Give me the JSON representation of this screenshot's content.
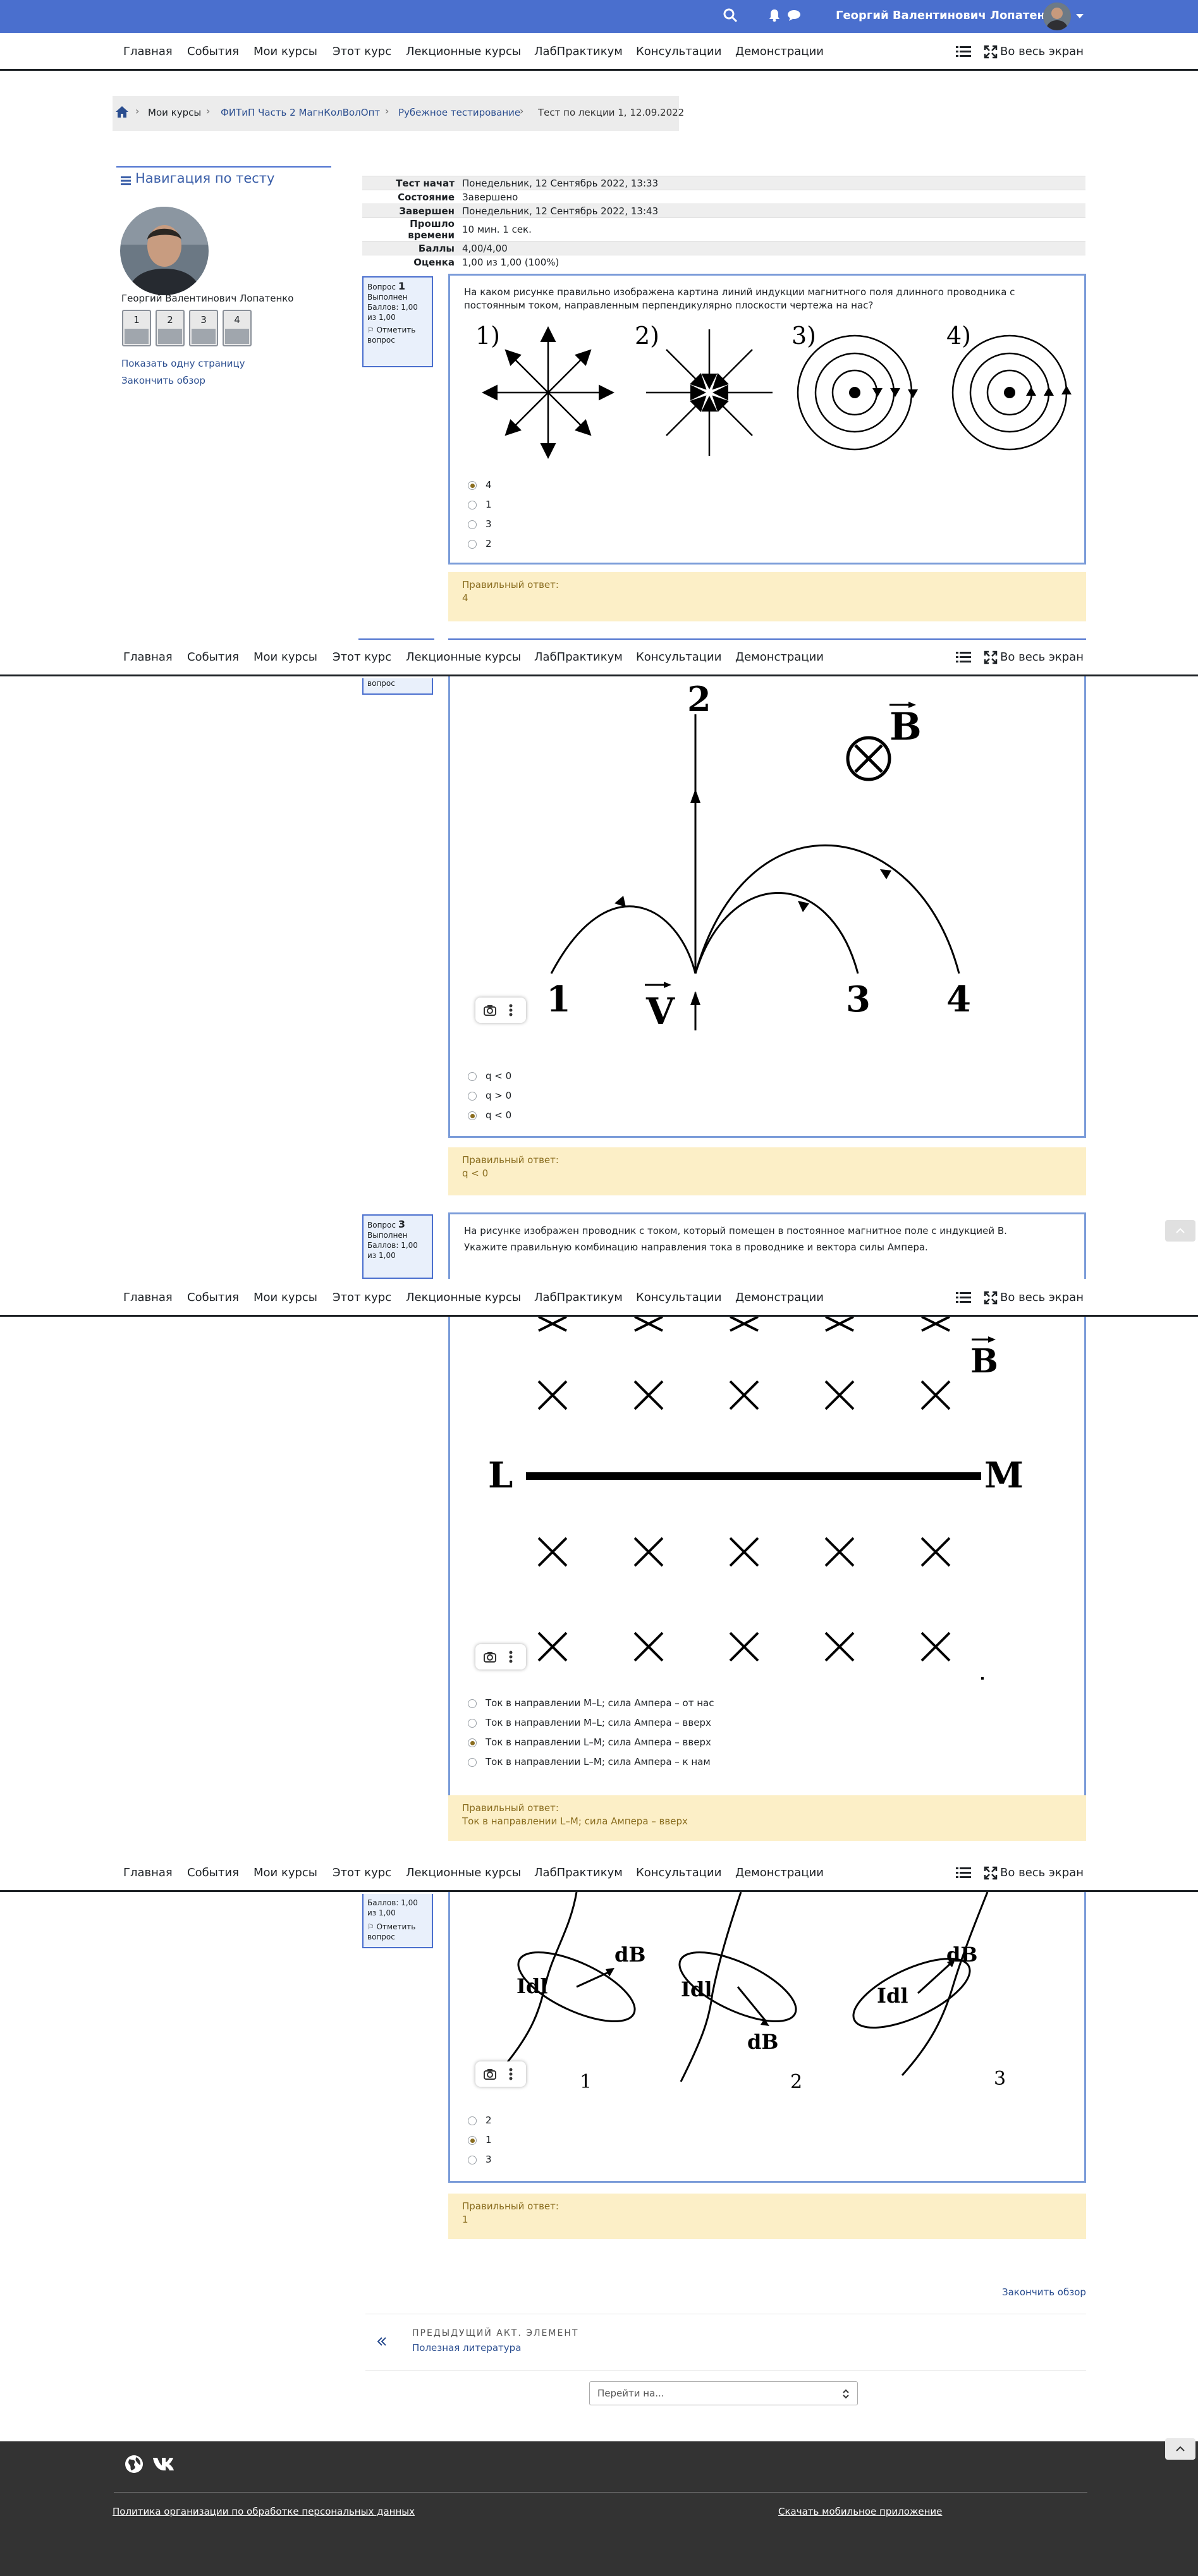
{
  "topbar": {
    "user_name": "Георгий Валентинович Лопатенко"
  },
  "nav": {
    "items": [
      "Главная",
      "События",
      "Мои курсы",
      "Этот курс",
      "Лекционные курсы",
      "ЛабПрактикум",
      "Консультации",
      "Демонстрации"
    ],
    "fullscreen": "Во весь экран"
  },
  "breadcrumb": [
    "Мои курсы",
    "ФИТиП Часть 2 МагнКолВолОпт",
    "Рубежное тестирование",
    "Тест по лекции 1, 12.09.2022"
  ],
  "quiz_nav": {
    "title": "Навигация по тесту",
    "user": "Георгий Валентинович Лопатенко",
    "buttons": [
      "1",
      "2",
      "3",
      "4"
    ],
    "show_one_page": "Показать одну страницу",
    "finish_review": "Закончить обзор"
  },
  "summary": [
    {
      "label": "Тест начат",
      "value": "Понедельник, 12 Сентябрь 2022, 13:33"
    },
    {
      "label": "Состояние",
      "value": "Завершено"
    },
    {
      "label": "Завершен",
      "value": "Понедельник, 12 Сентябрь 2022, 13:43"
    },
    {
      "label": "Прошло времени",
      "value": "10 мин. 1 сек."
    },
    {
      "label": "Баллы",
      "value": "4,00/4,00"
    },
    {
      "label": "Оценка",
      "value": "1,00 из 1,00 (100%)"
    }
  ],
  "q1": {
    "info": {
      "q_label": "Вопрос",
      "q_num": "1",
      "state": "Выполнен",
      "grade": "Баллов: 1,00 из 1,00",
      "flag": "Отметить вопрос"
    },
    "text": "На каком рисунке правильно изображена картина линий индукции магнитного поля длинного проводника с постоянным током, направленным перпендикулярно плоскости чертежа на нас?",
    "figure_labels": [
      "1)",
      "2)",
      "3)",
      "4)"
    ],
    "options": [
      "4",
      "1",
      "3",
      "2"
    ],
    "right_label": "Правильный ответ:",
    "right_value": "4"
  },
  "q2": {
    "info": {
      "fragment": "вопрос"
    },
    "figure_labels": [
      "2",
      "B",
      "1",
      "V",
      "3",
      "4"
    ],
    "options": [
      "q < 0",
      "q > 0",
      "q < 0"
    ],
    "right_label": "Правильный ответ:",
    "right_value": "q < 0"
  },
  "q3": {
    "info": {
      "q_label": "Вопрос",
      "q_num": "3",
      "state": "Выполнен",
      "grade": "Баллов: 1,00 из 1,00"
    },
    "text1": "На рисунке изображен проводник с током, который помещен в постоянное магнитное поле с индукцией B.",
    "text2": "Укажите правильную комбинацию направления тока в проводнике и вектора силы Ампера.",
    "figure_labels": [
      "B",
      "L",
      "M"
    ],
    "options": [
      "Ток в направлении M–L; сила Ампера – от нас",
      "Ток в направлении M–L; сила Ампера – вверх",
      "Ток в направлении L–M; сила Ампера – вверх",
      "Ток в направлении L–M; сила Ампера – к нам"
    ],
    "right_label": "Правильный ответ:",
    "right_value": "Ток в направлении L–M; сила Ампера – вверх"
  },
  "q4": {
    "info": {
      "grade": "Баллов: 1,00 из 1,00",
      "flag": "Отметить вопрос"
    },
    "figure_labels": [
      "Idl",
      "dB",
      "Idl",
      "dB",
      "Idl",
      "dB",
      "1",
      "2",
      "3"
    ],
    "options": [
      "2",
      "1",
      "3"
    ],
    "right_label": "Правильный ответ:",
    "right_value": "1"
  },
  "bottom": {
    "finish_review": "Закончить обзор",
    "prev_label": "ПРЕДЫДУЩИЙ АКТ. ЭЛЕМЕНТ",
    "prev_name": "Полезная литература",
    "jump": "Перейти на..."
  },
  "footer": {
    "policy": "Политика организации по обработке персональных данных",
    "mobile": "Скачать мобильное приложение"
  }
}
